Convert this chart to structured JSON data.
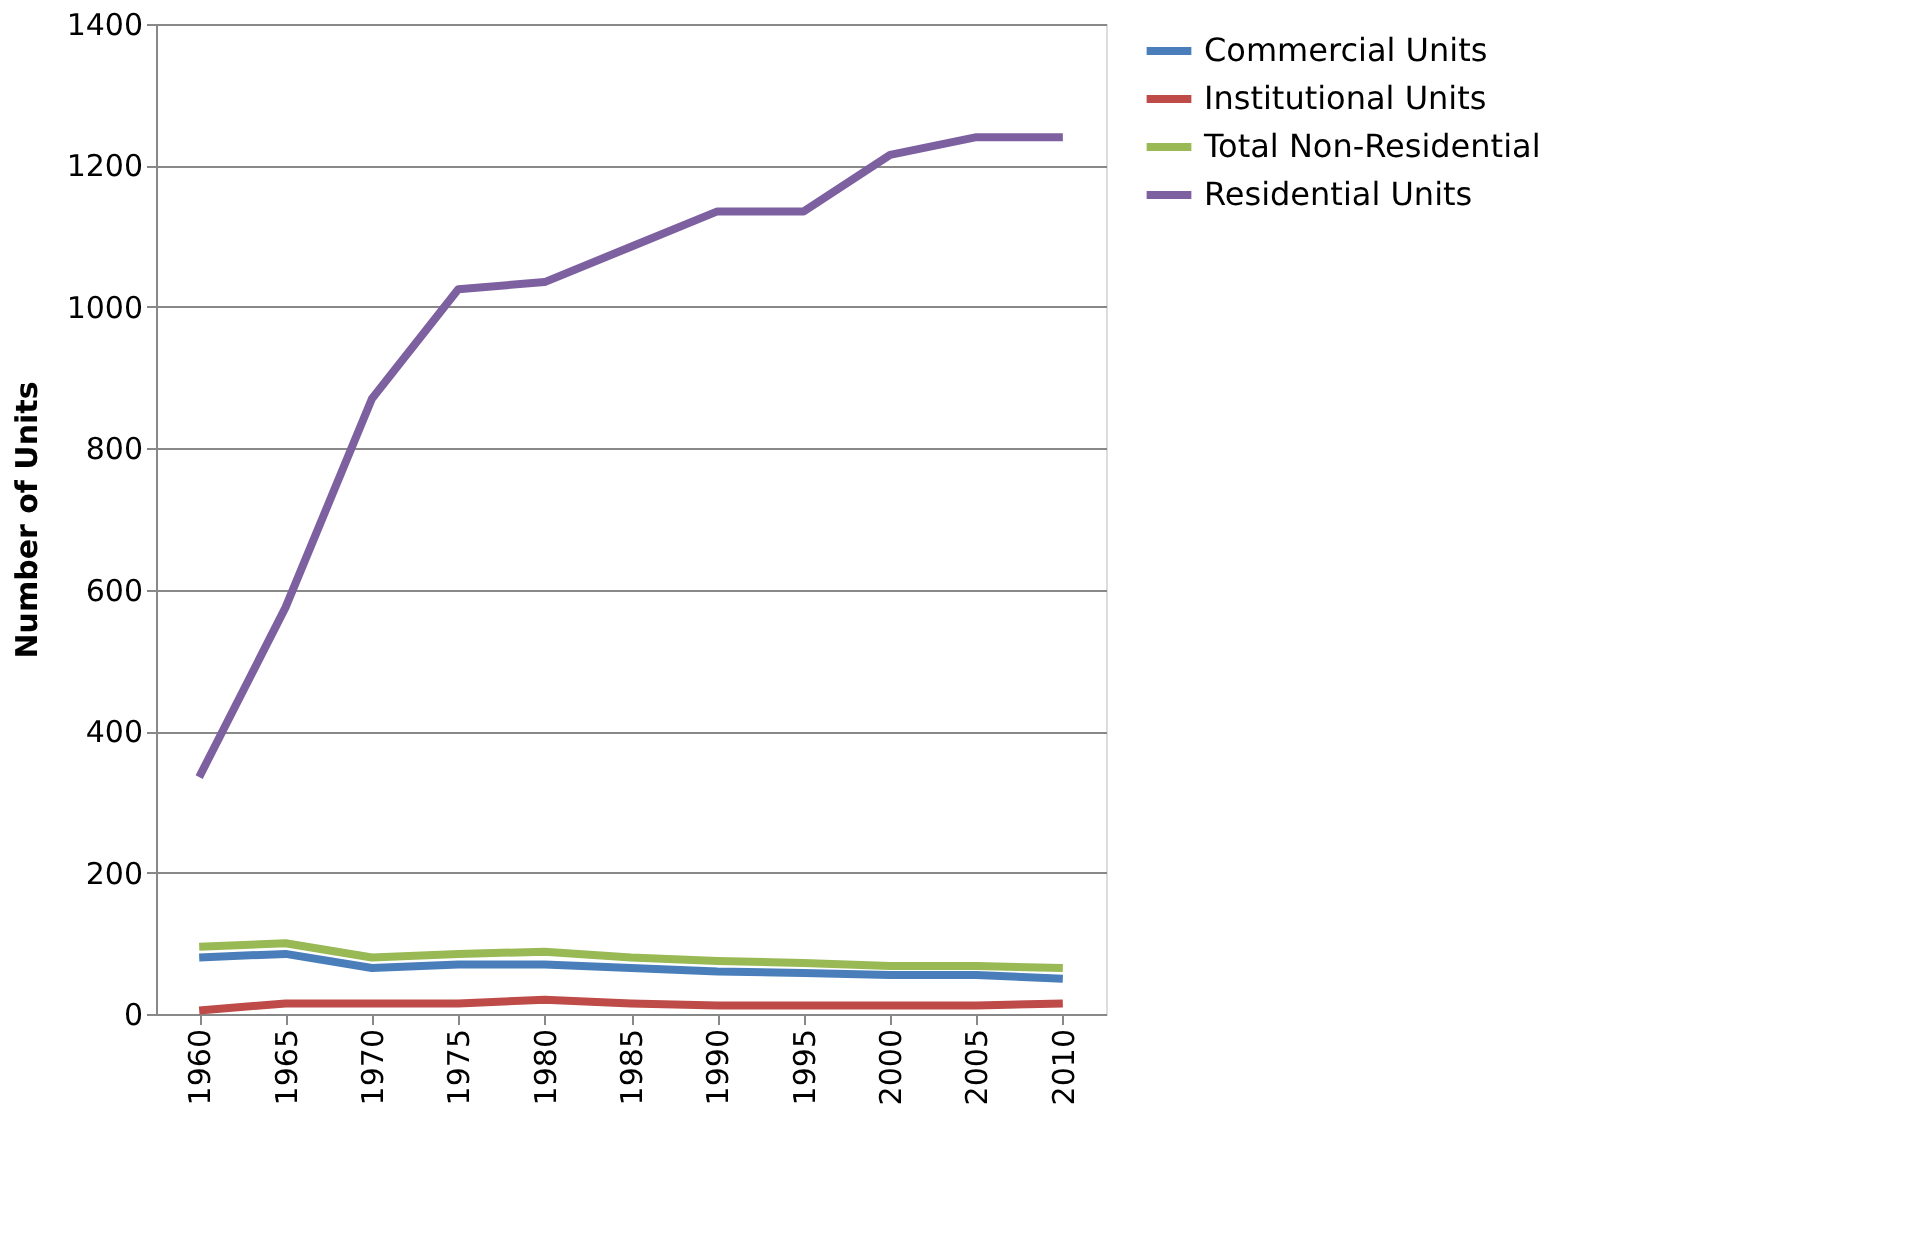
{
  "chart_data": {
    "type": "line",
    "ylabel": "Number of Units",
    "categories": [
      "1960",
      "1965",
      "1970",
      "1975",
      "1980",
      "1985",
      "1990",
      "1995",
      "2000",
      "2005",
      "2010"
    ],
    "series": [
      {
        "name": "Commercial Units",
        "color": "#4a7ebb",
        "values": [
          80,
          85,
          65,
          70,
          70,
          65,
          60,
          58,
          55,
          55,
          50
        ]
      },
      {
        "name": "Institutional Units",
        "color": "#be4b48",
        "values": [
          5,
          15,
          15,
          15,
          20,
          15,
          12,
          12,
          12,
          12,
          15
        ]
      },
      {
        "name": "Total Non-Residential",
        "color": "#98b954",
        "values": [
          95,
          100,
          80,
          85,
          88,
          80,
          75,
          72,
          68,
          68,
          65
        ]
      },
      {
        "name": "Residential Units",
        "color": "#7d60a0",
        "values": [
          335,
          575,
          870,
          1025,
          1035,
          1085,
          1135,
          1135,
          1215,
          1240,
          1240
        ]
      }
    ],
    "ylim": [
      0,
      1400
    ],
    "yticks": [
      0,
      200,
      400,
      600,
      800,
      1000,
      1200,
      1400
    ],
    "grid": "y",
    "legend": "right",
    "marker": "none",
    "line_style": "solid"
  }
}
